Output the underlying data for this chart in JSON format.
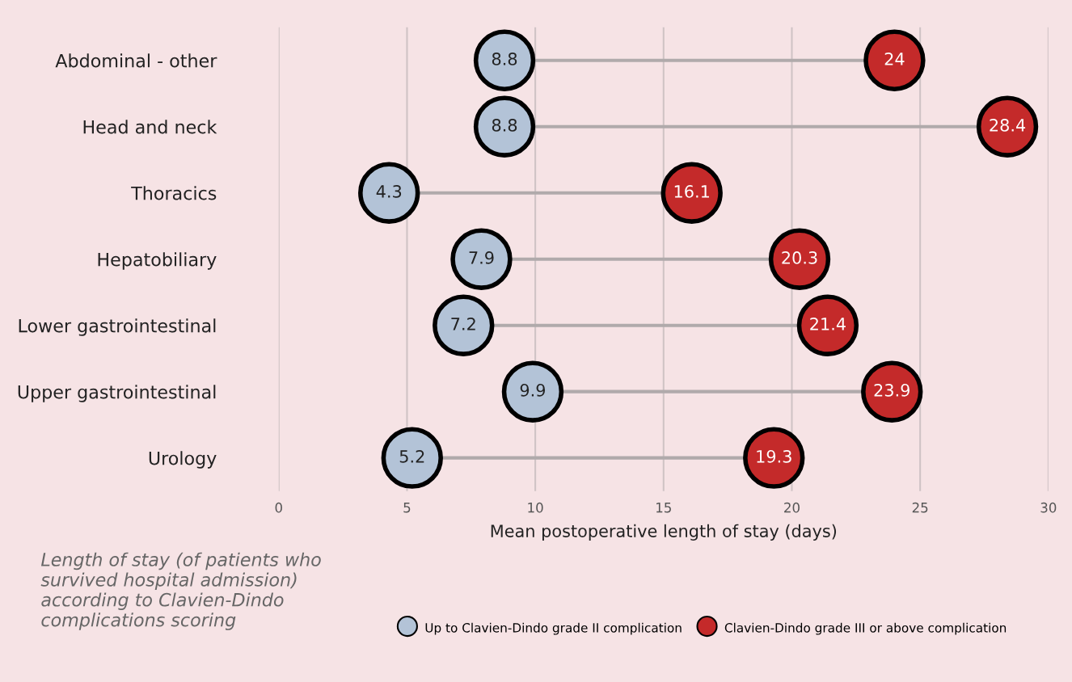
{
  "chart_data": {
    "type": "scatter",
    "orientation": "horizontal",
    "categories": [
      "Abdominal - other",
      "Head and neck",
      "Thoracics",
      "Hepatobiliary",
      "Lower gastrointestinal",
      "Upper gastrointestinal",
      "Urology"
    ],
    "series": [
      {
        "name": "Up to Clavien-Dindo grade II complication",
        "color": "#b3c3d7",
        "values": [
          8.8,
          8.8,
          4.3,
          7.9,
          7.2,
          9.9,
          5.2
        ]
      },
      {
        "name": "Clavien-Dindo grade III or above complication",
        "color": "#c42a2a",
        "values": [
          24,
          28.4,
          16.1,
          20.3,
          21.4,
          23.9,
          19.3
        ]
      }
    ],
    "xlabel": "Mean postoperative length of stay (days)",
    "xlim": [
      0,
      30
    ],
    "xticks": [
      0,
      5,
      10,
      15,
      20,
      25,
      30
    ],
    "grid": "x",
    "legend": "bottom",
    "marker": "circle",
    "data_labels": true,
    "annotations": [
      "Length of stay (of patients who survived hospital admission) according to Clavien-Dindo complications scoring"
    ]
  }
}
